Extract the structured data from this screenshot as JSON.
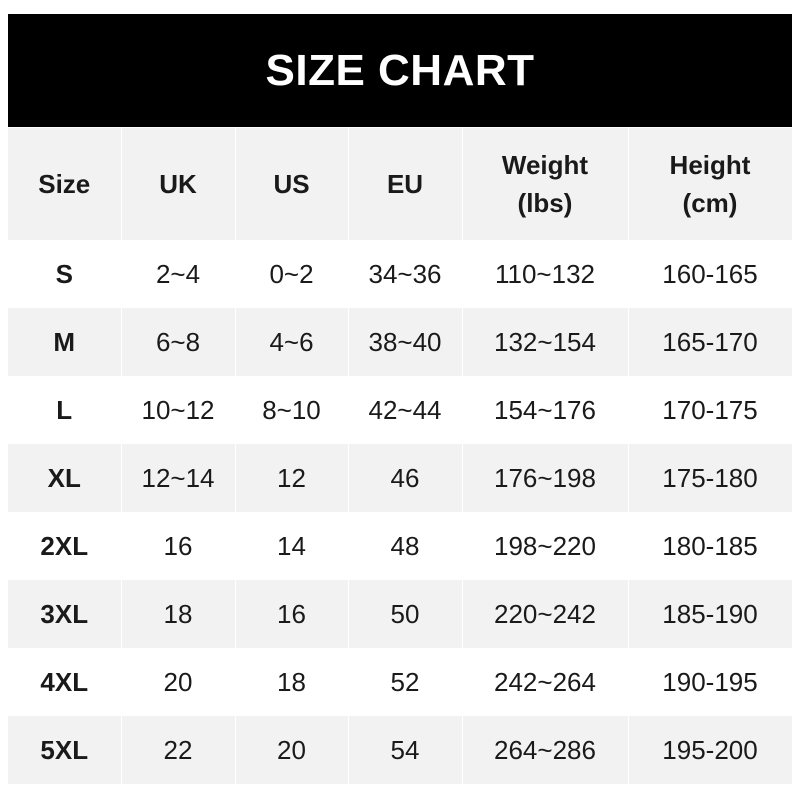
{
  "title": "SIZE CHART",
  "headers": [
    "Size",
    "UK",
    "US",
    "EU",
    "Weight\n(lbs)",
    "Height\n(cm)"
  ],
  "header_lines": [
    [
      "Size"
    ],
    [
      "UK"
    ],
    [
      "US"
    ],
    [
      "EU"
    ],
    [
      "Weight",
      "(lbs)"
    ],
    [
      "Height",
      "(cm)"
    ]
  ],
  "rows": [
    [
      "S",
      "2~4",
      "0~2",
      "34~36",
      "110~132",
      "160-165"
    ],
    [
      "M",
      "6~8",
      "4~6",
      "38~40",
      "132~154",
      "165-170"
    ],
    [
      "L",
      "10~12",
      "8~10",
      "42~44",
      "154~176",
      "170-175"
    ],
    [
      "XL",
      "12~14",
      "12",
      "46",
      "176~198",
      "175-180"
    ],
    [
      "2XL",
      "16",
      "14",
      "48",
      "198~220",
      "180-185"
    ],
    [
      "3XL",
      "18",
      "16",
      "50",
      "220~242",
      "185-190"
    ],
    [
      "4XL",
      "20",
      "18",
      "52",
      "242~264",
      "190-195"
    ],
    [
      "5XL",
      "22",
      "20",
      "54",
      "264~286",
      "195-200"
    ]
  ]
}
